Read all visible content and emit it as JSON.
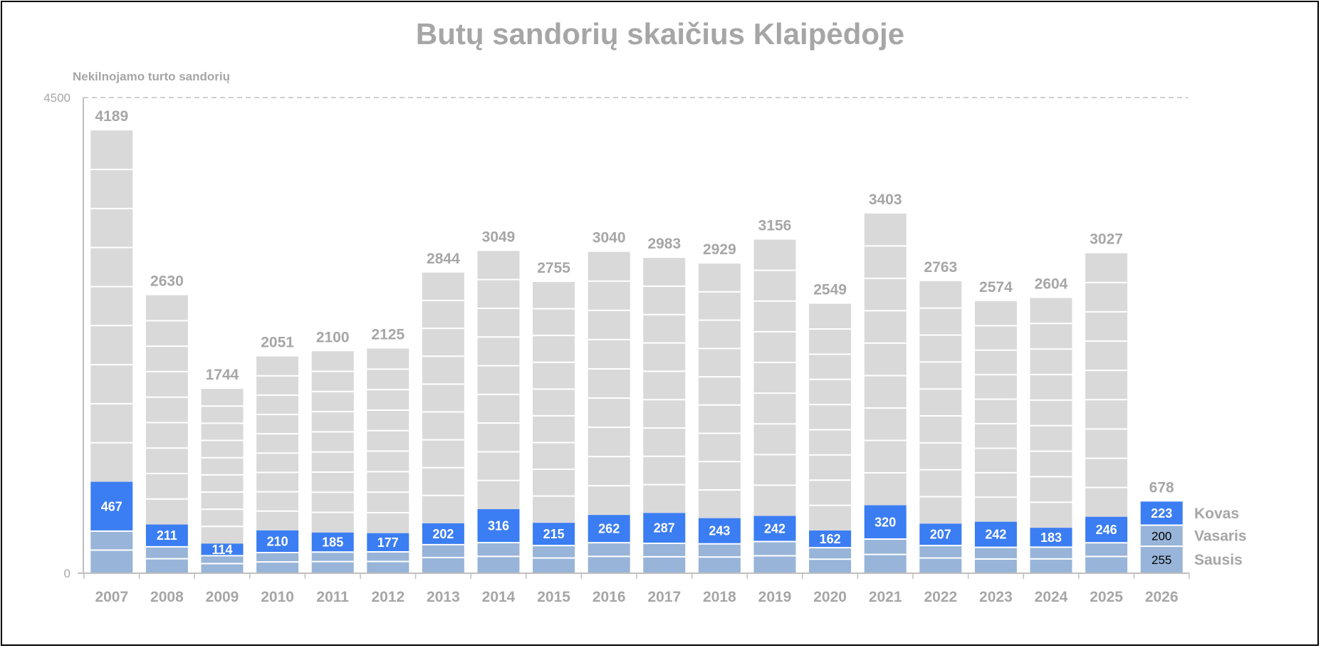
{
  "chart_data": {
    "type": "bar",
    "title": "Butų sandorių skaičius Klaipėdoje",
    "ylabel": "Nekilnojamo turto sandorių",
    "ylim": [
      0,
      4500
    ],
    "y_ticks": [
      "4500",
      "0"
    ],
    "categories": [
      "2007",
      "2008",
      "2009",
      "2010",
      "2011",
      "2012",
      "2013",
      "2014",
      "2015",
      "2016",
      "2017",
      "2018",
      "2019",
      "2020",
      "2021",
      "2022",
      "2023",
      "2024",
      "2025",
      "2026"
    ],
    "totals": [
      4189,
      2630,
      1744,
      2051,
      2100,
      2125,
      2844,
      3049,
      2755,
      3040,
      2983,
      2929,
      3156,
      2549,
      3403,
      2763,
      2574,
      2604,
      3027,
      678
    ],
    "series": [
      {
        "name": "Sausis",
        "values": [
          null,
          null,
          null,
          null,
          null,
          null,
          null,
          null,
          null,
          null,
          null,
          null,
          null,
          null,
          null,
          null,
          null,
          null,
          null,
          255
        ]
      },
      {
        "name": "Vasaris",
        "values": [
          null,
          null,
          null,
          null,
          null,
          null,
          null,
          null,
          null,
          null,
          null,
          null,
          null,
          null,
          null,
          null,
          null,
          null,
          null,
          200
        ]
      },
      {
        "name": "Kovas",
        "values": [
          467,
          211,
          114,
          210,
          185,
          177,
          202,
          316,
          215,
          262,
          287,
          243,
          242,
          162,
          320,
          207,
          242,
          183,
          246,
          223
        ]
      }
    ],
    "legend_placement": "right",
    "grid": true,
    "colors": {
      "kovas": "#3b7df2",
      "jan_feb": "#98b4d8",
      "rest": "#d9d9d9",
      "label_gray": "#a6a6a6",
      "axis": "#bfbfbf"
    }
  }
}
